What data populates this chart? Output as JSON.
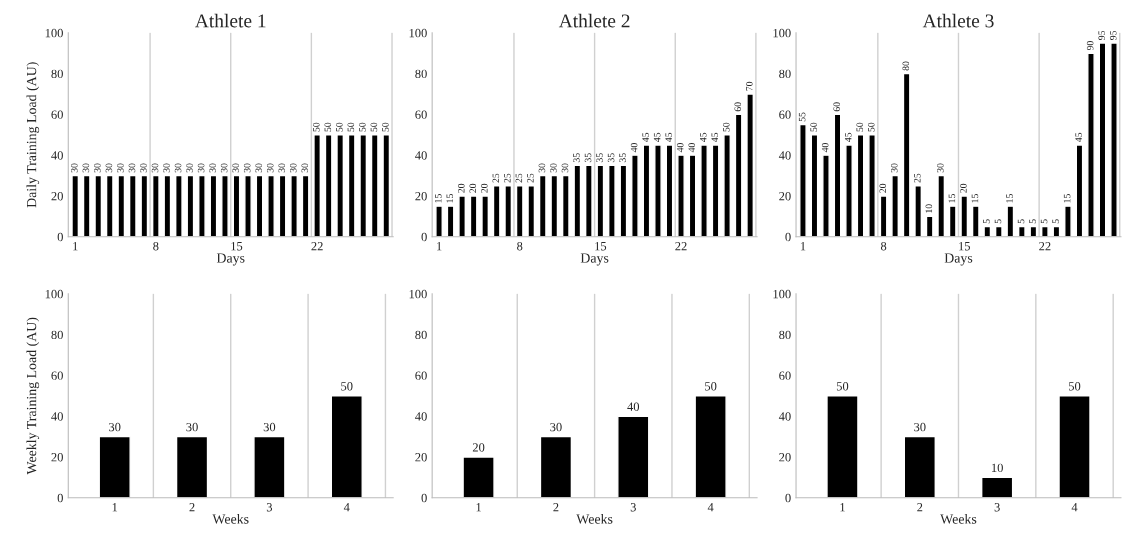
{
  "chart_data": [
    {
      "type": "bar",
      "title": "Athlete 1",
      "xlabel": "Days",
      "ylabel": "Daily Training Load (AU)",
      "categories": [
        "1",
        null,
        null,
        null,
        null,
        null,
        null,
        "8",
        null,
        null,
        null,
        null,
        null,
        null,
        "15",
        null,
        null,
        null,
        null,
        null,
        null,
        "22",
        null,
        null,
        null,
        null,
        null,
        null
      ],
      "values": [
        30,
        30,
        30,
        30,
        30,
        30,
        30,
        30,
        30,
        30,
        30,
        30,
        30,
        30,
        30,
        30,
        30,
        30,
        30,
        30,
        30,
        50,
        50,
        50,
        50,
        50,
        50,
        50
      ],
      "color": "#000000",
      "ylim": [
        0,
        100
      ],
      "yticks": [
        0,
        20,
        40,
        60,
        80,
        100
      ],
      "grid": "x",
      "data_labels": true
    },
    {
      "type": "bar",
      "title": "Athlete 2",
      "xlabel": "Days",
      "categories": [
        "1",
        null,
        null,
        null,
        null,
        null,
        null,
        "8",
        null,
        null,
        null,
        null,
        null,
        null,
        "15",
        null,
        null,
        null,
        null,
        null,
        null,
        "22",
        null,
        null,
        null,
        null,
        null,
        null
      ],
      "values": [
        15,
        15,
        20,
        20,
        20,
        25,
        25,
        25,
        25,
        30,
        30,
        30,
        35,
        35,
        35,
        35,
        35,
        40,
        45,
        45,
        45,
        40,
        40,
        45,
        45,
        50,
        60,
        70
      ],
      "color": "#000000",
      "ylim": [
        0,
        100
      ],
      "yticks": [
        0,
        20,
        40,
        60,
        80,
        100
      ],
      "grid": "x",
      "data_labels": true
    },
    {
      "type": "bar",
      "title": "Athlete 3",
      "xlabel": "Days",
      "categories": [
        "1",
        null,
        null,
        null,
        null,
        null,
        null,
        "8",
        null,
        null,
        null,
        null,
        null,
        null,
        "15",
        null,
        null,
        null,
        null,
        null,
        null,
        "22",
        null,
        null,
        null,
        null,
        null,
        null
      ],
      "values": [
        55,
        50,
        40,
        60,
        45,
        50,
        50,
        20,
        30,
        80,
        25,
        10,
        30,
        15,
        20,
        15,
        5,
        5,
        15,
        5,
        5,
        5,
        5,
        15,
        45,
        90,
        95,
        95
      ],
      "color": "#000000",
      "ylim": [
        0,
        100
      ],
      "yticks": [
        0,
        20,
        40,
        60,
        80,
        100
      ],
      "grid": "x",
      "data_labels": true
    },
    {
      "type": "bar",
      "xlabel": "Weeks",
      "ylabel": "Weekly Training Load (AU)",
      "categories": [
        "1",
        "2",
        "3",
        "4"
      ],
      "values": [
        30,
        30,
        30,
        50
      ],
      "color": "#000000",
      "ylim": [
        0,
        100
      ],
      "yticks": [
        0,
        20,
        40,
        60,
        80,
        100
      ],
      "grid": "x",
      "data_labels": true
    },
    {
      "type": "bar",
      "xlabel": "Weeks",
      "categories": [
        "1",
        "2",
        "3",
        "4"
      ],
      "values": [
        20,
        30,
        40,
        50
      ],
      "color": "#000000",
      "ylim": [
        0,
        100
      ],
      "yticks": [
        0,
        20,
        40,
        60,
        80,
        100
      ],
      "grid": "x",
      "data_labels": true
    },
    {
      "type": "bar",
      "xlabel": "Weeks",
      "categories": [
        "1",
        "2",
        "3",
        "4"
      ],
      "values": [
        50,
        30,
        10,
        50
      ],
      "color": "#000000",
      "ylim": [
        0,
        100
      ],
      "yticks": [
        0,
        20,
        40,
        60,
        80,
        100
      ],
      "grid": "x",
      "data_labels": true
    }
  ]
}
